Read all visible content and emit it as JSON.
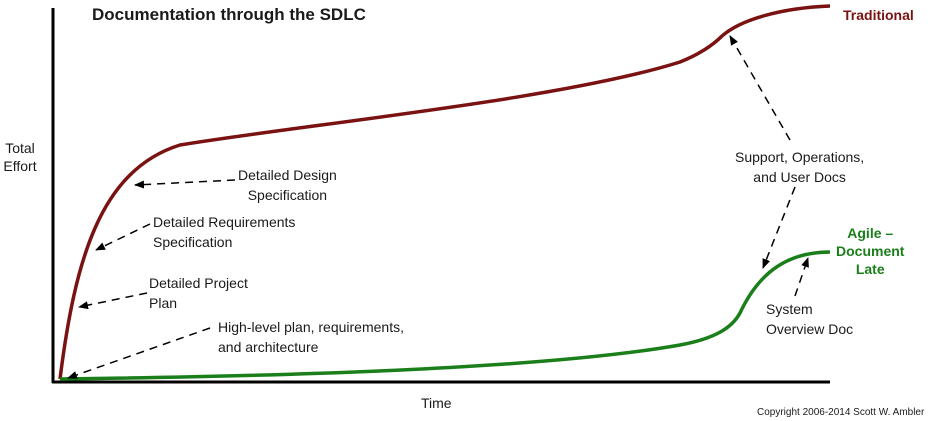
{
  "diagram": {
    "title": "Documentation through the SDLC",
    "axes": {
      "y_label_line1": "Total",
      "y_label_line2": "Effort",
      "x_label": "Time"
    },
    "series": {
      "traditional": {
        "label": "Traditional",
        "color": "#7a1212"
      },
      "agile": {
        "label_line1": "Agile –",
        "label_line2": "Document",
        "label_line3": "Late",
        "color": "#1a7f1a"
      }
    },
    "annotations": {
      "design_line1": "Detailed Design",
      "design_line2": "Specification",
      "requirements_line1": "Detailed Requirements",
      "requirements_line2": "Specification",
      "project_line1": "Detailed Project",
      "project_line2": "Plan",
      "highlevel_line1": "High-level plan, requirements,",
      "highlevel_line2": "and architecture",
      "support_line1": "Support, Operations,",
      "support_line2": "and User Docs",
      "system_line1": "System",
      "system_line2": "Overview Doc"
    },
    "copyright": "Copyright 2006-2014 Scott W. Ambler",
    "colors": {
      "axis": "#000000",
      "arrow": "#000000"
    }
  }
}
